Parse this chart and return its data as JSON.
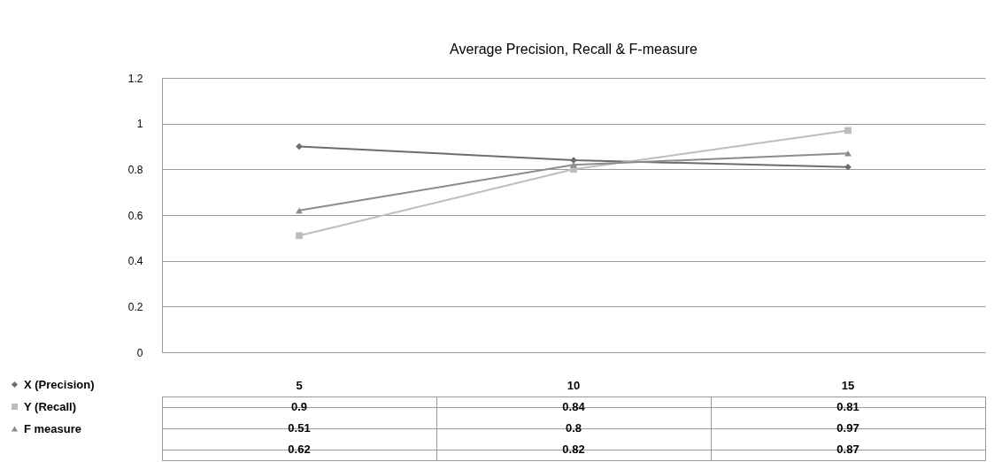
{
  "chart_data": {
    "type": "line",
    "title": "Average Precision, Recall & F-measure",
    "categories": [
      "5",
      "10",
      "15"
    ],
    "series": [
      {
        "name": "X (Precision)",
        "color": "#6d6d6d",
        "marker": "diamond",
        "values": [
          0.9,
          0.84,
          0.81
        ]
      },
      {
        "name": "Y (Recall)",
        "color": "#bdbdbd",
        "marker": "square",
        "values": [
          0.51,
          0.8,
          0.97
        ]
      },
      {
        "name": "F measure",
        "color": "#8c8c8c",
        "marker": "triangle",
        "values": [
          0.62,
          0.82,
          0.87
        ]
      }
    ],
    "ylim": [
      0,
      1.2
    ],
    "yticks": [
      {
        "value": 0,
        "label": "0"
      },
      0.2,
      0.4,
      0.6,
      0.8,
      {
        "value": 1,
        "label": "1"
      },
      1.2
    ],
    "grid": "y",
    "legend": "bottom left",
    "data_labels": true,
    "line_style": "solid"
  }
}
